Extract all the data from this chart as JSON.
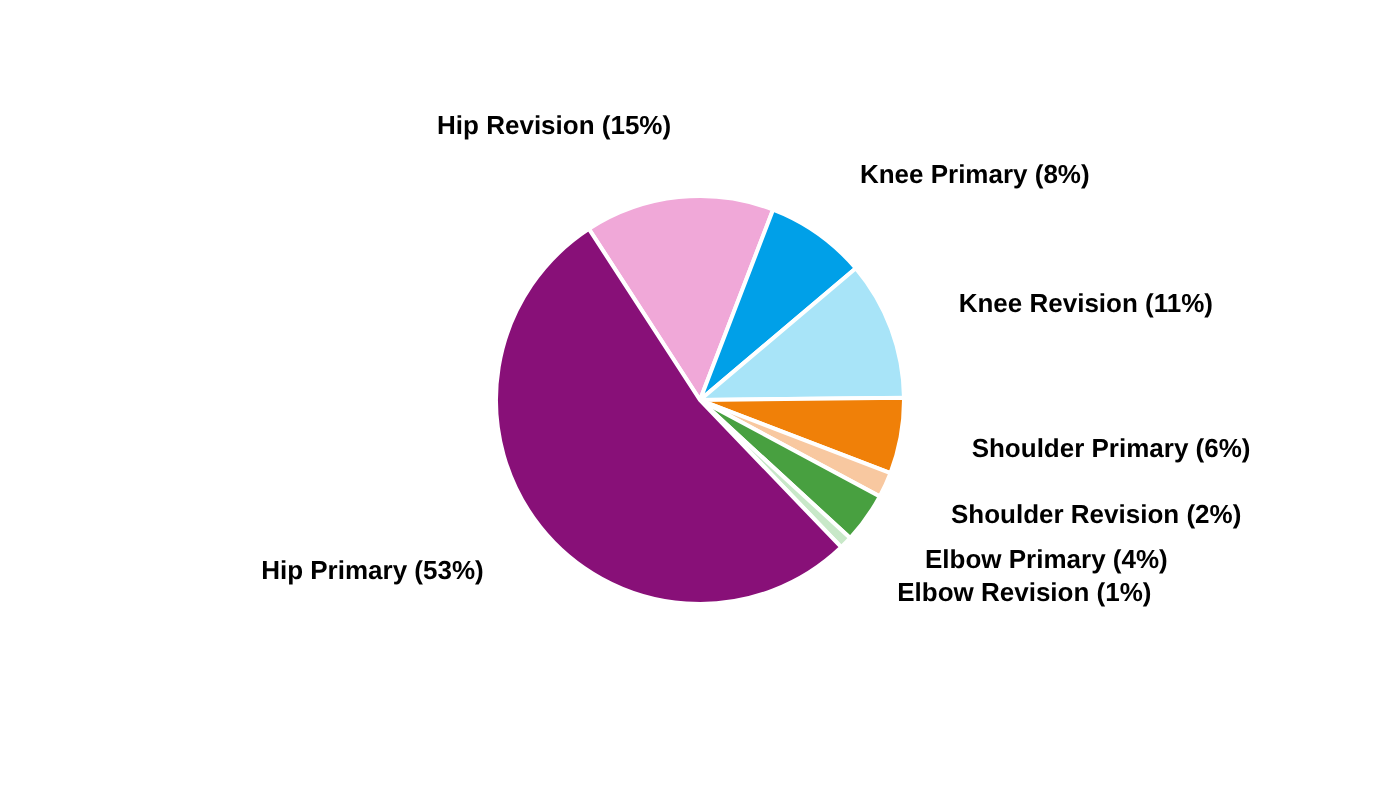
{
  "chart_data": {
    "type": "pie",
    "categories": [
      "Hip Revision (15%)",
      "Knee Primary (8%)",
      "Knee Revision (11%)",
      "Shoulder Primary (6%)",
      "Shoulder Revision (2%)",
      "Elbow Primary (4%)",
      "Elbow Revision (1%)",
      "Hip Primary (53%)"
    ],
    "values": [
      15,
      8,
      11,
      6,
      2,
      4,
      1,
      53
    ],
    "colors": [
      "#f0a8d8",
      "#00a0e8",
      "#a8e4f8",
      "#f08008",
      "#f8c8a0",
      "#48a040",
      "#c8e8c8",
      "#881078"
    ]
  }
}
